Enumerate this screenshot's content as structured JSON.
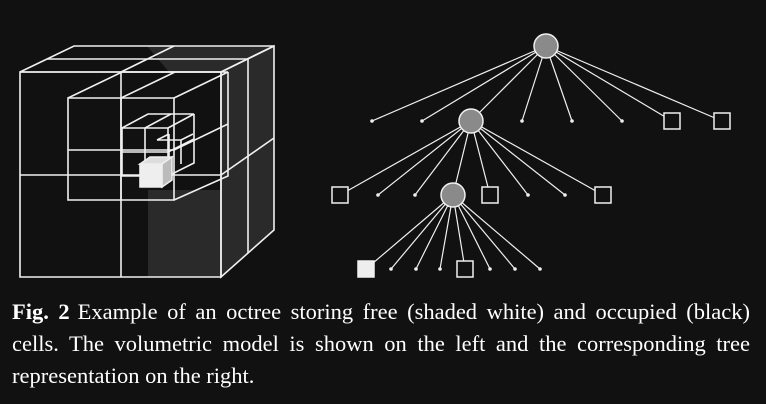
{
  "figure": {
    "label": "Fig. 2",
    "caption": "Example of an octree storing free (shaded white) and occupied (black) cells. The volumetric model is shown on the left and the corresponding tree representation on the right."
  },
  "colors": {
    "background": "#111111",
    "line": "#f0f0f0",
    "node_fill": "#8a8a8a",
    "free_cell": "#eeeeee",
    "occupied_cell": "#2a2a2a"
  },
  "tree": {
    "levels": [
      {
        "node": "inner",
        "children": [
          "leaf",
          "inner",
          "leaf",
          "leaf",
          "leaf",
          "leaf",
          "free-leaf",
          "free-leaf"
        ]
      },
      {
        "node": "inner",
        "children": [
          "free-leaf",
          "leaf",
          "leaf",
          "inner",
          "free-leaf",
          "leaf",
          "leaf",
          "free-leaf"
        ]
      },
      {
        "node": "inner",
        "children": [
          "occupied-leaf",
          "leaf",
          "leaf",
          "leaf",
          "free-leaf",
          "leaf",
          "leaf",
          "leaf"
        ]
      }
    ]
  }
}
